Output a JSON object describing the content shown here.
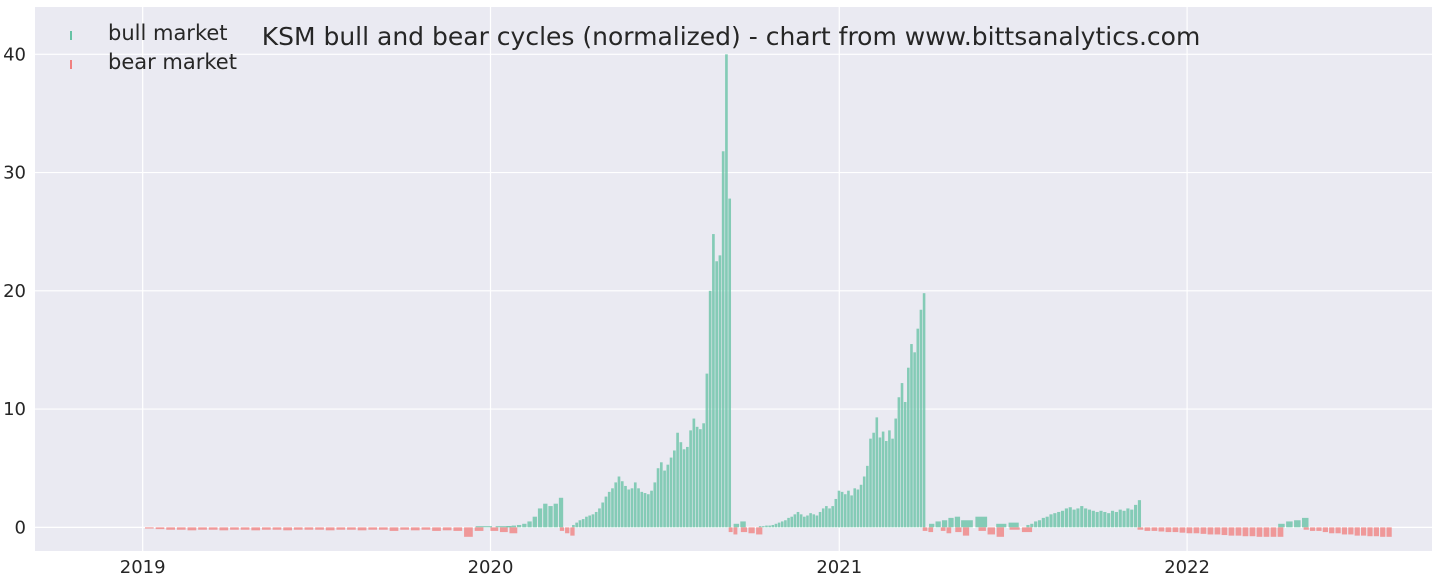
{
  "chart_data": {
    "type": "bar",
    "title": "KSM bull and bear cycles (normalized)  - chart from www.bittsanalytics.com",
    "xlabel": "",
    "ylabel": "",
    "x_ticks": [
      "2019",
      "2020",
      "2021",
      "2022"
    ],
    "x_tick_dates": [
      "2019-01-01",
      "2020-01-01",
      "2021-01-01",
      "2022-01-01"
    ],
    "x_range": [
      "2018-09-10",
      "2022-09-15"
    ],
    "y_ticks": [
      0,
      10,
      20,
      30,
      40
    ],
    "ylim": [
      -2,
      44
    ],
    "grid": true,
    "legend_position": "top-left",
    "colors": {
      "bull": "#66c2a5",
      "bear": "#f08080",
      "background": "#eaeaf2",
      "grid": "#ffffff"
    },
    "series": [
      {
        "name": "bull market",
        "color": "#66c2a5",
        "segments": [
          {
            "start": "2019-12-25",
            "end": "2020-01-15",
            "values": [
              0.1,
              0.1
            ]
          },
          {
            "start": "2020-01-20",
            "end": "2020-03-15",
            "values": [
              0.1,
              0.15,
              0.2,
              0.3,
              0.5,
              0.9,
              1.6,
              2.0,
              1.8,
              2.0,
              2.5
            ]
          },
          {
            "start": "2020-03-28",
            "end": "2020-09-08",
            "values": [
              0.2,
              0.4,
              0.6,
              0.7,
              0.9,
              1.0,
              1.1,
              1.3,
              1.6,
              2.1,
              2.6,
              3.0,
              3.3,
              3.8,
              4.3,
              3.9,
              3.5,
              3.2,
              3.3,
              3.8,
              3.3,
              3.0,
              2.9,
              2.8,
              3.1,
              3.8,
              5.0,
              5.5,
              4.8,
              5.3,
              5.9,
              6.5,
              8.0,
              7.2,
              6.6,
              6.8,
              8.2,
              9.2,
              8.5,
              8.3,
              8.8,
              13.0,
              20.0,
              24.8,
              22.5,
              23.0,
              31.8,
              40.0,
              27.8
            ]
          },
          {
            "start": "2020-09-15",
            "end": "2020-09-22",
            "values": [
              0.3,
              0.5
            ]
          },
          {
            "start": "2020-10-10",
            "end": "2021-03-31",
            "values": [
              0.1,
              0.1,
              0.15,
              0.15,
              0.2,
              0.3,
              0.4,
              0.5,
              0.6,
              0.8,
              0.9,
              1.1,
              1.3,
              1.1,
              0.9,
              1.0,
              1.2,
              1.1,
              1.0,
              1.3,
              1.6,
              1.8,
              1.6,
              1.8,
              2.4,
              3.1,
              3.0,
              2.8,
              3.1,
              2.7,
              3.3,
              3.2,
              3.6,
              4.3,
              5.2,
              7.5,
              8.0,
              9.3,
              7.6,
              8.1,
              7.3,
              8.2,
              7.5,
              9.2,
              11.0,
              12.2,
              10.6,
              13.5,
              15.5,
              14.8,
              16.8,
              18.4,
              19.8
            ]
          },
          {
            "start": "2021-04-08",
            "end": "2021-05-05",
            "values": [
              0.3,
              0.5,
              0.6,
              0.8,
              0.9
            ]
          },
          {
            "start": "2021-05-15",
            "end": "2021-05-30",
            "values": [
              0.6,
              0.9
            ]
          },
          {
            "start": "2021-06-20",
            "end": "2021-07-03",
            "values": [
              0.3,
              0.4
            ]
          },
          {
            "start": "2021-07-18",
            "end": "2021-11-12",
            "values": [
              0.2,
              0.3,
              0.5,
              0.6,
              0.8,
              0.9,
              1.1,
              1.2,
              1.3,
              1.4,
              1.6,
              1.7,
              1.5,
              1.6,
              1.8,
              1.6,
              1.5,
              1.4,
              1.3,
              1.4,
              1.3,
              1.2,
              1.4,
              1.3,
              1.5,
              1.4,
              1.6,
              1.5,
              1.9,
              2.3
            ]
          },
          {
            "start": "2022-04-10",
            "end": "2022-05-05",
            "values": [
              0.3,
              0.5,
              0.6,
              0.8
            ]
          }
        ]
      },
      {
        "name": "bear market",
        "color": "#f08080",
        "segments": [
          {
            "start": "2019-01-08",
            "end": "2019-12-20",
            "values": [
              -0.1,
              -0.15,
              -0.2,
              -0.2,
              -0.25,
              -0.2,
              -0.2,
              -0.25,
              -0.2,
              -0.2,
              -0.25,
              -0.2,
              -0.2,
              -0.25,
              -0.2,
              -0.2,
              -0.2,
              -0.25,
              -0.2,
              -0.2,
              -0.25,
              -0.2,
              -0.2,
              -0.3,
              -0.2,
              -0.25,
              -0.2,
              -0.3,
              -0.25,
              -0.3,
              -0.8,
              -0.3
            ]
          },
          {
            "start": "2020-01-05",
            "end": "2020-01-25",
            "values": [
              -0.3,
              -0.4,
              -0.5
            ]
          },
          {
            "start": "2020-03-16",
            "end": "2020-03-27",
            "values": [
              -0.3,
              -0.5,
              -0.7
            ]
          },
          {
            "start": "2020-09-09",
            "end": "2020-09-14",
            "values": [
              -0.4,
              -0.6
            ]
          },
          {
            "start": "2020-09-23",
            "end": "2020-10-09",
            "values": [
              -0.4,
              -0.5,
              -0.6
            ]
          },
          {
            "start": "2021-04-01",
            "end": "2021-04-07",
            "values": [
              -0.3,
              -0.4
            ]
          },
          {
            "start": "2021-04-20",
            "end": "2021-04-26",
            "values": [
              -0.3,
              -0.5
            ]
          },
          {
            "start": "2021-05-06",
            "end": "2021-05-14",
            "values": [
              -0.4,
              -0.7
            ]
          },
          {
            "start": "2021-05-31",
            "end": "2021-06-19",
            "values": [
              -0.3,
              -0.6,
              -0.8
            ]
          },
          {
            "start": "2021-07-04",
            "end": "2021-07-17",
            "values": [
              -0.2,
              -0.4
            ]
          },
          {
            "start": "2021-11-13",
            "end": "2022-04-09",
            "values": [
              -0.2,
              -0.3,
              -0.3,
              -0.35,
              -0.4,
              -0.4,
              -0.45,
              -0.5,
              -0.5,
              -0.55,
              -0.6,
              -0.6,
              -0.65,
              -0.7,
              -0.7,
              -0.75,
              -0.75,
              -0.8,
              -0.8,
              -0.8,
              -0.8
            ]
          },
          {
            "start": "2022-05-06",
            "end": "2022-08-01",
            "values": [
              -0.2,
              -0.3,
              -0.3,
              -0.4,
              -0.5,
              -0.5,
              -0.6,
              -0.6,
              -0.7,
              -0.7,
              -0.75,
              -0.75,
              -0.8,
              -0.8
            ]
          }
        ]
      }
    ]
  }
}
